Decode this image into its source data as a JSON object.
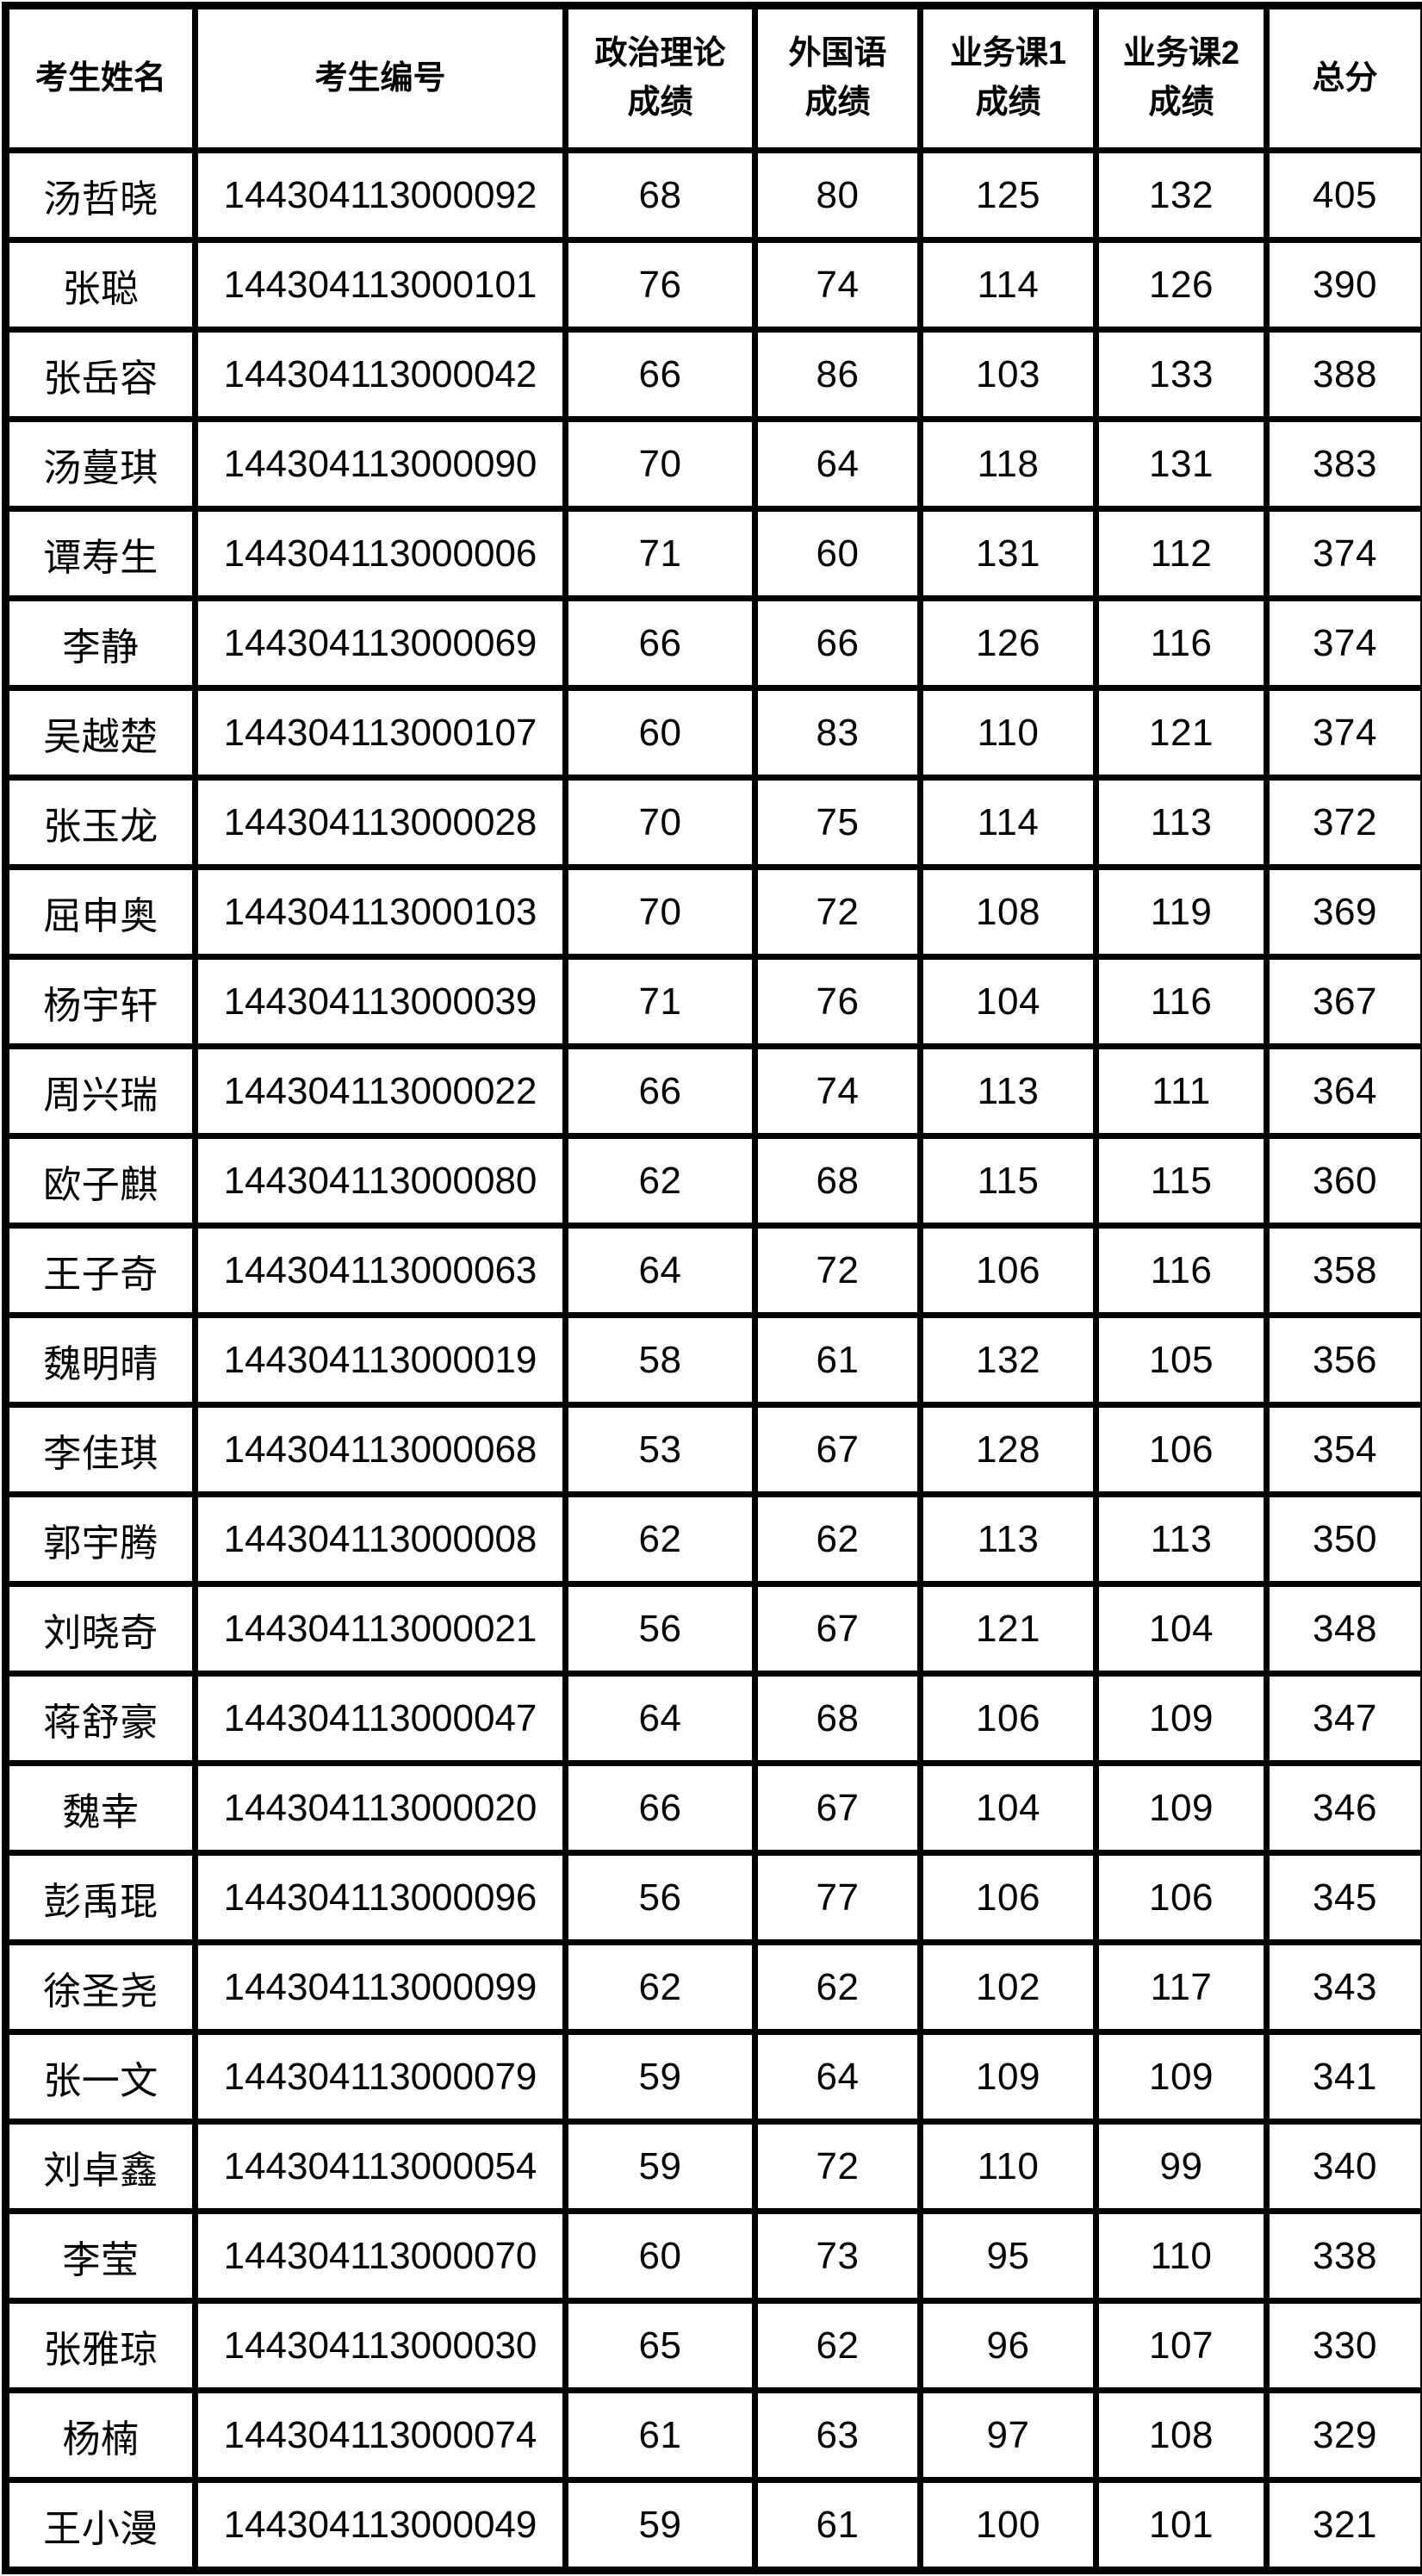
{
  "table": {
    "headers": [
      "考生姓名",
      "考生编号",
      "政治理论\n成绩",
      "外国语\n成绩",
      "业务课1\n成绩",
      "业务课2\n成绩",
      "总分"
    ],
    "rows": [
      {
        "name": "汤哲晓",
        "id": "144304113000092",
        "politics": "68",
        "foreign": "80",
        "course1": "125",
        "course2": "132",
        "total": "405"
      },
      {
        "name": "张聪",
        "id": "144304113000101",
        "politics": "76",
        "foreign": "74",
        "course1": "114",
        "course2": "126",
        "total": "390"
      },
      {
        "name": "张岳容",
        "id": "144304113000042",
        "politics": "66",
        "foreign": "86",
        "course1": "103",
        "course2": "133",
        "total": "388"
      },
      {
        "name": "汤蔓琪",
        "id": "144304113000090",
        "politics": "70",
        "foreign": "64",
        "course1": "118",
        "course2": "131",
        "total": "383"
      },
      {
        "name": "谭寿生",
        "id": "144304113000006",
        "politics": "71",
        "foreign": "60",
        "course1": "131",
        "course2": "112",
        "total": "374"
      },
      {
        "name": "李静",
        "id": "144304113000069",
        "politics": "66",
        "foreign": "66",
        "course1": "126",
        "course2": "116",
        "total": "374"
      },
      {
        "name": "吴越楚",
        "id": "144304113000107",
        "politics": "60",
        "foreign": "83",
        "course1": "110",
        "course2": "121",
        "total": "374"
      },
      {
        "name": "张玉龙",
        "id": "144304113000028",
        "politics": "70",
        "foreign": "75",
        "course1": "114",
        "course2": "113",
        "total": "372"
      },
      {
        "name": "屈申奥",
        "id": "144304113000103",
        "politics": "70",
        "foreign": "72",
        "course1": "108",
        "course2": "119",
        "total": "369"
      },
      {
        "name": "杨宇轩",
        "id": "144304113000039",
        "politics": "71",
        "foreign": "76",
        "course1": "104",
        "course2": "116",
        "total": "367"
      },
      {
        "name": "周兴瑞",
        "id": "144304113000022",
        "politics": "66",
        "foreign": "74",
        "course1": "113",
        "course2": "111",
        "total": "364"
      },
      {
        "name": "欧子麒",
        "id": "144304113000080",
        "politics": "62",
        "foreign": "68",
        "course1": "115",
        "course2": "115",
        "total": "360"
      },
      {
        "name": "王子奇",
        "id": "144304113000063",
        "politics": "64",
        "foreign": "72",
        "course1": "106",
        "course2": "116",
        "total": "358"
      },
      {
        "name": "魏明晴",
        "id": "144304113000019",
        "politics": "58",
        "foreign": "61",
        "course1": "132",
        "course2": "105",
        "total": "356"
      },
      {
        "name": "李佳琪",
        "id": "144304113000068",
        "politics": "53",
        "foreign": "67",
        "course1": "128",
        "course2": "106",
        "total": "354"
      },
      {
        "name": "郭宇腾",
        "id": "144304113000008",
        "politics": "62",
        "foreign": "62",
        "course1": "113",
        "course2": "113",
        "total": "350"
      },
      {
        "name": "刘晓奇",
        "id": "144304113000021",
        "politics": "56",
        "foreign": "67",
        "course1": "121",
        "course2": "104",
        "total": "348"
      },
      {
        "name": "蒋舒豪",
        "id": "144304113000047",
        "politics": "64",
        "foreign": "68",
        "course1": "106",
        "course2": "109",
        "total": "347"
      },
      {
        "name": "魏幸",
        "id": "144304113000020",
        "politics": "66",
        "foreign": "67",
        "course1": "104",
        "course2": "109",
        "total": "346"
      },
      {
        "name": "彭禹琨",
        "id": "144304113000096",
        "politics": "56",
        "foreign": "77",
        "course1": "106",
        "course2": "106",
        "total": "345"
      },
      {
        "name": "徐圣尧",
        "id": "144304113000099",
        "politics": "62",
        "foreign": "62",
        "course1": "102",
        "course2": "117",
        "total": "343"
      },
      {
        "name": "张一文",
        "id": "144304113000079",
        "politics": "59",
        "foreign": "64",
        "course1": "109",
        "course2": "109",
        "total": "341"
      },
      {
        "name": "刘卓鑫",
        "id": "144304113000054",
        "politics": "59",
        "foreign": "72",
        "course1": "110",
        "course2": "99",
        "total": "340"
      },
      {
        "name": "李莹",
        "id": "144304113000070",
        "politics": "60",
        "foreign": "73",
        "course1": "95",
        "course2": "110",
        "total": "338"
      },
      {
        "name": "张雅琼",
        "id": "144304113000030",
        "politics": "65",
        "foreign": "62",
        "course1": "96",
        "course2": "107",
        "total": "330"
      },
      {
        "name": "杨楠",
        "id": "144304113000074",
        "politics": "61",
        "foreign": "63",
        "course1": "97",
        "course2": "108",
        "total": "329"
      },
      {
        "name": "王小漫",
        "id": "144304113000049",
        "politics": "59",
        "foreign": "61",
        "course1": "100",
        "course2": "101",
        "total": "321"
      }
    ]
  }
}
